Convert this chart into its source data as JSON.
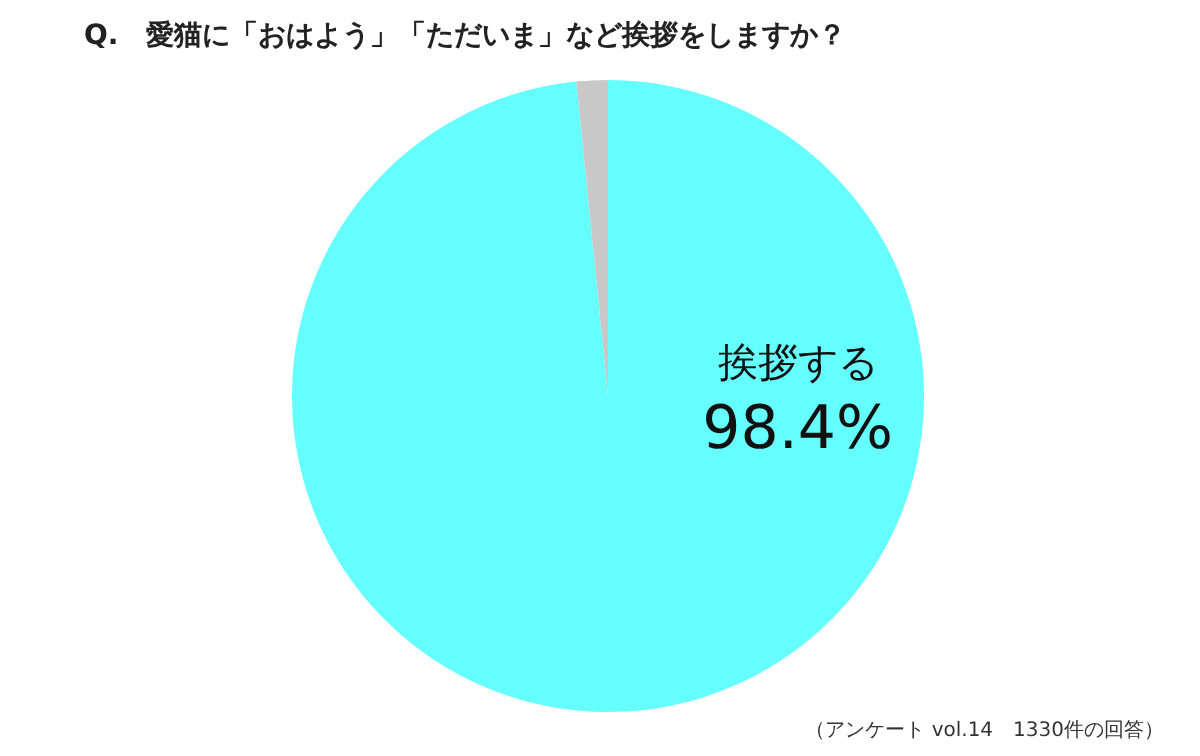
{
  "chart_data": {
    "type": "pie",
    "title": "Q.　愛猫に「おはよう」「ただいま」など挨拶をしますか？",
    "categories": [
      "挨拶する",
      null
    ],
    "values": [
      98.4,
      1.6
    ],
    "value_labels": [
      "98.4%",
      null
    ],
    "colors": [
      "#66ffff",
      "#c8c8c8"
    ],
    "annotations": [
      "（アンケート vol.14　1330件の回答）"
    ]
  }
}
